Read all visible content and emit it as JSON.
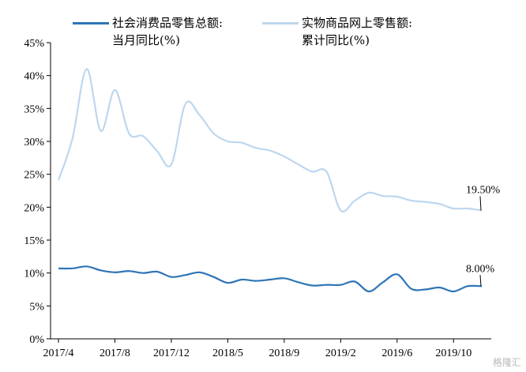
{
  "legend": [
    {
      "line1": "社会消费品零售总额:",
      "line2": "当月同比(%)",
      "color": "#2e75b6"
    },
    {
      "line1": "实物商品网上零售额:",
      "line2": "累计同比(%)",
      "color": "#bdd7ee"
    }
  ],
  "watermark": "格隆汇",
  "chart_data": {
    "type": "line",
    "xlabel": "",
    "ylabel": "",
    "ylim": [
      0,
      45
    ],
    "yticks": [
      "0%",
      "5%",
      "10%",
      "15%",
      "20%",
      "25%",
      "30%",
      "35%",
      "40%",
      "45%"
    ],
    "x_tick_labels": [
      "2017/4",
      "2017/8",
      "2017/12",
      "2018/5",
      "2018/9",
      "2019/2",
      "2019/6",
      "2019/10"
    ],
    "x": [
      "2017/4",
      "2017/5",
      "2017/6",
      "2017/7",
      "2017/8",
      "2017/9",
      "2017/10",
      "2017/11",
      "2017/12",
      "2018/2",
      "2018/3",
      "2018/4",
      "2018/5",
      "2018/6",
      "2018/7",
      "2018/8",
      "2018/9",
      "2018/10",
      "2018/11",
      "2018/12",
      "2019/2",
      "2019/3",
      "2019/4",
      "2019/5",
      "2019/6",
      "2019/7",
      "2019/8",
      "2019/9",
      "2019/10",
      "2019/11",
      "2019/12"
    ],
    "grid": false,
    "series": [
      {
        "name": "社会消费品零售总额:当月同比(%)",
        "color": "#2e75b6",
        "values": [
          10.7,
          10.7,
          11.0,
          10.4,
          10.1,
          10.3,
          10.0,
          10.2,
          9.4,
          9.7,
          10.1,
          9.4,
          8.5,
          9.0,
          8.8,
          9.0,
          9.2,
          8.6,
          8.1,
          8.2,
          8.2,
          8.7,
          7.2,
          8.6,
          9.8,
          7.6,
          7.5,
          7.8,
          7.2,
          8.0,
          8.0
        ],
        "end_label": "8.00%"
      },
      {
        "name": "实物商品网上零售额:累计同比(%)",
        "color": "#bdd7ee",
        "values": [
          24.1,
          30.5,
          41.0,
          31.6,
          37.8,
          31.2,
          30.8,
          28.5,
          26.5,
          35.7,
          34.0,
          31.2,
          30.0,
          29.8,
          29.0,
          28.6,
          27.7,
          26.5,
          25.4,
          25.4,
          19.5,
          21.0,
          22.2,
          21.7,
          21.6,
          21.0,
          20.8,
          20.5,
          19.8,
          19.8,
          19.5
        ],
        "end_label": "19.50%"
      }
    ]
  }
}
